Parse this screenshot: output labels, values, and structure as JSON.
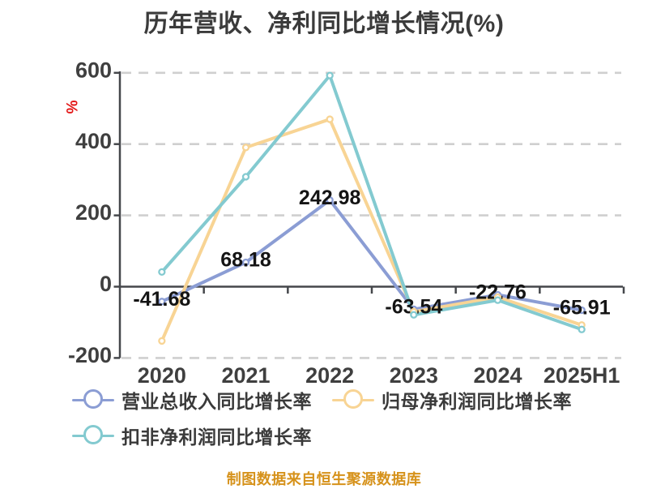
{
  "page": {
    "background": "#ffffff"
  },
  "y_axis": {
    "unit_label": "%",
    "unit_color": "#e31616",
    "tick_values": [
      600,
      400,
      200,
      0,
      -200
    ]
  },
  "chart_data": {
    "type": "line",
    "title": "历年营收、净利同比增长情况(%)",
    "categories": [
      "2020",
      "2021",
      "2022",
      "2023",
      "2024",
      "2025H1"
    ],
    "series": [
      {
        "name": "营业总收入同比增长率",
        "color": "#8b9dd4",
        "values": [
          -41.68,
          68.18,
          242.98,
          -63.54,
          -22.76,
          -65.91
        ],
        "labels_shown": true
      },
      {
        "name": "归母净利润同比增长率",
        "color": "#f8d494",
        "values": [
          -152.3,
          390.5,
          469.7,
          -70.3,
          -29.6,
          -107.7
        ],
        "labels_shown": false
      },
      {
        "name": "扣非净利润同比增长率",
        "color": "#83cad0",
        "values": [
          41.2,
          308.3,
          592.4,
          -79.0,
          -37.9,
          -120.1
        ],
        "labels_shown": false
      }
    ],
    "ylim": [
      -200,
      600
    ],
    "y_tick_step": 200,
    "xlabel": "",
    "ylabel": "%",
    "grid": "horizontal dashed lines",
    "legend_position": "bottom left, two rows"
  },
  "style": {
    "axis_color": "#45474b",
    "grid_color": "#cfcfcf",
    "axis_label_color": "#3f3f3f",
    "data_label_color": "#141414",
    "legend_text_color": "#3a3a3a"
  },
  "footer": {
    "text": "制图数据来自恒生聚源数据库",
    "color": "#d6921b"
  }
}
